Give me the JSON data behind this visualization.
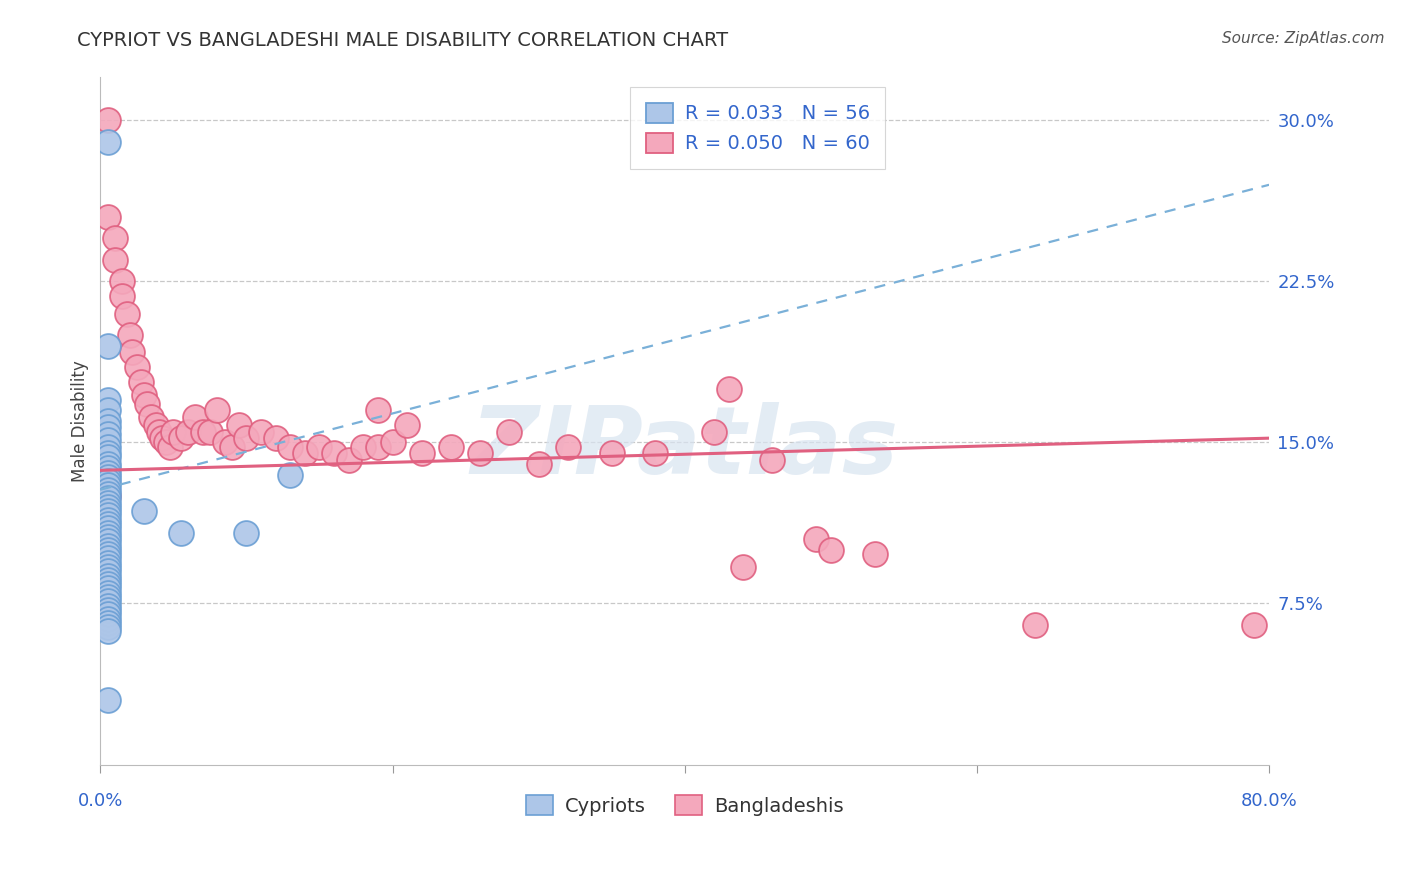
{
  "title": "CYPRIOT VS BANGLADESHI MALE DISABILITY CORRELATION CHART",
  "source": "Source: ZipAtlas.com",
  "ylabel": "Male Disability",
  "ytick_labels": [
    "7.5%",
    "15.0%",
    "22.5%",
    "30.0%"
  ],
  "ytick_values": [
    0.075,
    0.15,
    0.225,
    0.3
  ],
  "xlim": [
    0.0,
    0.8
  ],
  "ylim": [
    0.0,
    0.32
  ],
  "legend_R_cypriot": "R = 0.033",
  "legend_N_cypriot": "N = 56",
  "legend_R_bangladeshi": "R = 0.050",
  "legend_N_bangladeshi": "N = 60",
  "cypriot_color": "#adc6e8",
  "bangladeshi_color": "#f4a8bc",
  "cypriot_edge_color": "#6b9fd4",
  "bangladeshi_edge_color": "#e06080",
  "cypriot_trend_color": "#7ab0d8",
  "bangladeshi_trend_color": "#e06080",
  "background_color": "#ffffff",
  "grid_color": "#c8c8c8",
  "cypriot_scatter_x": [
    0.005,
    0.005,
    0.005,
    0.005,
    0.005,
    0.005,
    0.005,
    0.005,
    0.005,
    0.005,
    0.005,
    0.005,
    0.005,
    0.005,
    0.005,
    0.005,
    0.005,
    0.005,
    0.005,
    0.005,
    0.005,
    0.005,
    0.005,
    0.005,
    0.005,
    0.005,
    0.005,
    0.005,
    0.005,
    0.005,
    0.005,
    0.005,
    0.005,
    0.005,
    0.005,
    0.005,
    0.005,
    0.005,
    0.005,
    0.005,
    0.005,
    0.005,
    0.005,
    0.005,
    0.005,
    0.005,
    0.005,
    0.005,
    0.005,
    0.005,
    0.005,
    0.03,
    0.055,
    0.1,
    0.13,
    0.005
  ],
  "cypriot_scatter_y": [
    0.29,
    0.195,
    0.17,
    0.165,
    0.16,
    0.157,
    0.154,
    0.151,
    0.148,
    0.145,
    0.143,
    0.14,
    0.138,
    0.136,
    0.134,
    0.132,
    0.13,
    0.128,
    0.126,
    0.124,
    0.122,
    0.12,
    0.118,
    0.116,
    0.114,
    0.112,
    0.11,
    0.108,
    0.106,
    0.104,
    0.102,
    0.1,
    0.098,
    0.096,
    0.094,
    0.092,
    0.09,
    0.088,
    0.086,
    0.084,
    0.082,
    0.08,
    0.078,
    0.076,
    0.074,
    0.072,
    0.07,
    0.068,
    0.066,
    0.064,
    0.062,
    0.118,
    0.108,
    0.108,
    0.135,
    0.03
  ],
  "bangladeshi_scatter_x": [
    0.005,
    0.005,
    0.01,
    0.01,
    0.015,
    0.015,
    0.018,
    0.02,
    0.022,
    0.025,
    0.028,
    0.03,
    0.032,
    0.035,
    0.038,
    0.04,
    0.042,
    0.045,
    0.048,
    0.05,
    0.055,
    0.06,
    0.065,
    0.07,
    0.075,
    0.08,
    0.085,
    0.09,
    0.095,
    0.1,
    0.11,
    0.12,
    0.13,
    0.14,
    0.15,
    0.16,
    0.17,
    0.18,
    0.19,
    0.2,
    0.22,
    0.24,
    0.26,
    0.28,
    0.3,
    0.32,
    0.35,
    0.38,
    0.42,
    0.46,
    0.49,
    0.53,
    0.19,
    0.21,
    0.43,
    0.44,
    0.64,
    0.5,
    0.79,
    0.005
  ],
  "bangladeshi_scatter_y": [
    0.3,
    0.255,
    0.245,
    0.235,
    0.225,
    0.218,
    0.21,
    0.2,
    0.192,
    0.185,
    0.178,
    0.172,
    0.168,
    0.162,
    0.158,
    0.155,
    0.152,
    0.15,
    0.148,
    0.155,
    0.152,
    0.155,
    0.162,
    0.155,
    0.155,
    0.165,
    0.15,
    0.148,
    0.158,
    0.152,
    0.155,
    0.152,
    0.148,
    0.145,
    0.148,
    0.145,
    0.142,
    0.148,
    0.148,
    0.15,
    0.145,
    0.148,
    0.145,
    0.155,
    0.14,
    0.148,
    0.145,
    0.145,
    0.155,
    0.142,
    0.105,
    0.098,
    0.165,
    0.158,
    0.175,
    0.092,
    0.065,
    0.1,
    0.065,
    0.125
  ],
  "cypriot_trend_y_start": 0.128,
  "cypriot_trend_y_end": 0.27,
  "bangladeshi_trend_y_start": 0.137,
  "bangladeshi_trend_y_end": 0.152,
  "watermark_text": "ZIPatlas",
  "legend_label_cypriot": "Cypriots",
  "legend_label_bangladeshi": "Bangladeshis",
  "legend_fontsize": 14,
  "title_fontsize": 14,
  "axis_label_fontsize": 12,
  "tick_fontsize": 13
}
